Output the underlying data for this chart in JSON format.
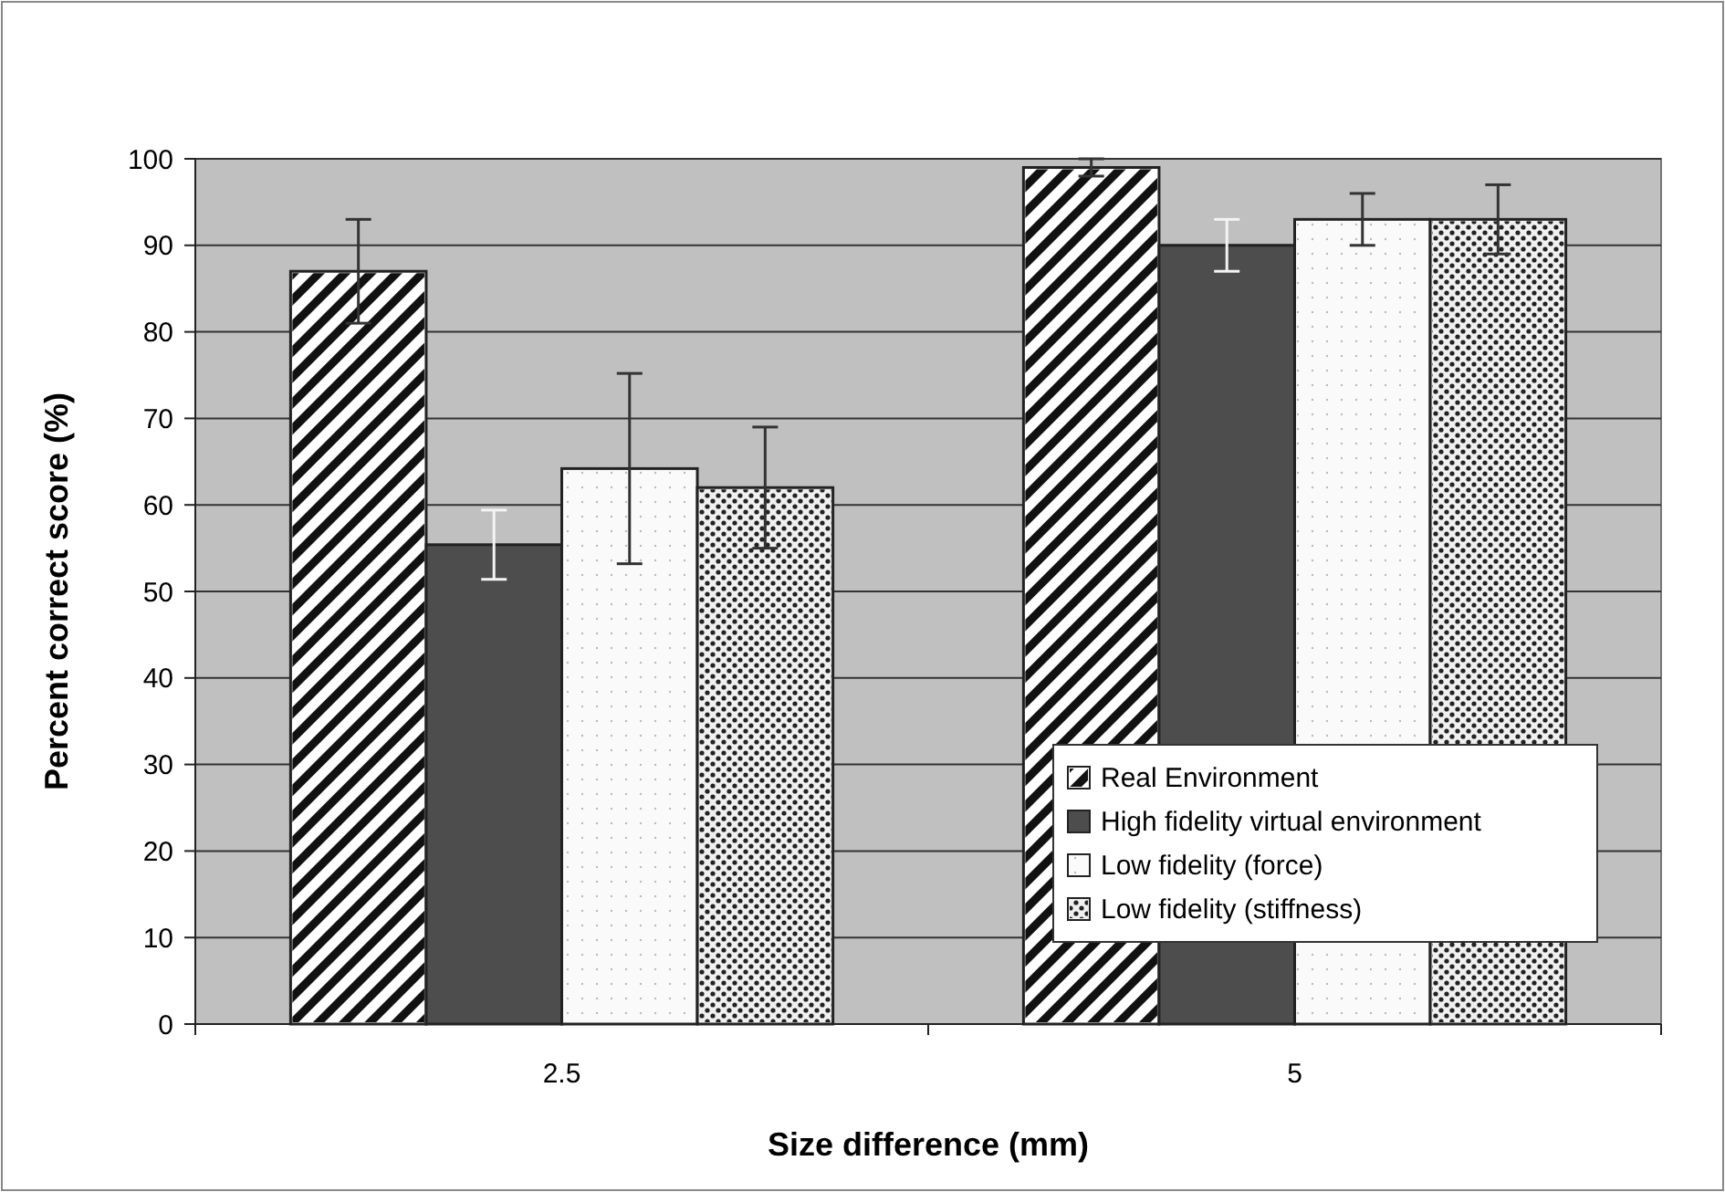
{
  "chart_data": {
    "type": "bar",
    "xlabel": "Size difference (mm)",
    "ylabel": "Percent correct score (%)",
    "categories": [
      "2.5",
      "5"
    ],
    "series": [
      {
        "name": "Real Environment",
        "color": "#ffffff",
        "values": [
          87,
          99
        ],
        "errors": [
          6,
          1
        ]
      },
      {
        "name": "High fidelity virtual environment",
        "color": "#4d4d4d",
        "values": [
          55.4,
          90
        ],
        "errors": [
          4,
          3
        ]
      },
      {
        "name": "Low fidelity (force)",
        "color": "#fafafa",
        "values": [
          64.2,
          93
        ],
        "errors": [
          11,
          3
        ]
      },
      {
        "name": "Low fidelity (stiffness)",
        "color": "#f0f0f0",
        "values": [
          62,
          93
        ],
        "errors": [
          7,
          4
        ]
      }
    ],
    "ylim": [
      0,
      100
    ],
    "yticks": [
      0,
      10,
      20,
      30,
      40,
      50,
      60,
      70,
      80,
      90,
      100
    ],
    "grid": "y",
    "legend": "bottom right"
  }
}
